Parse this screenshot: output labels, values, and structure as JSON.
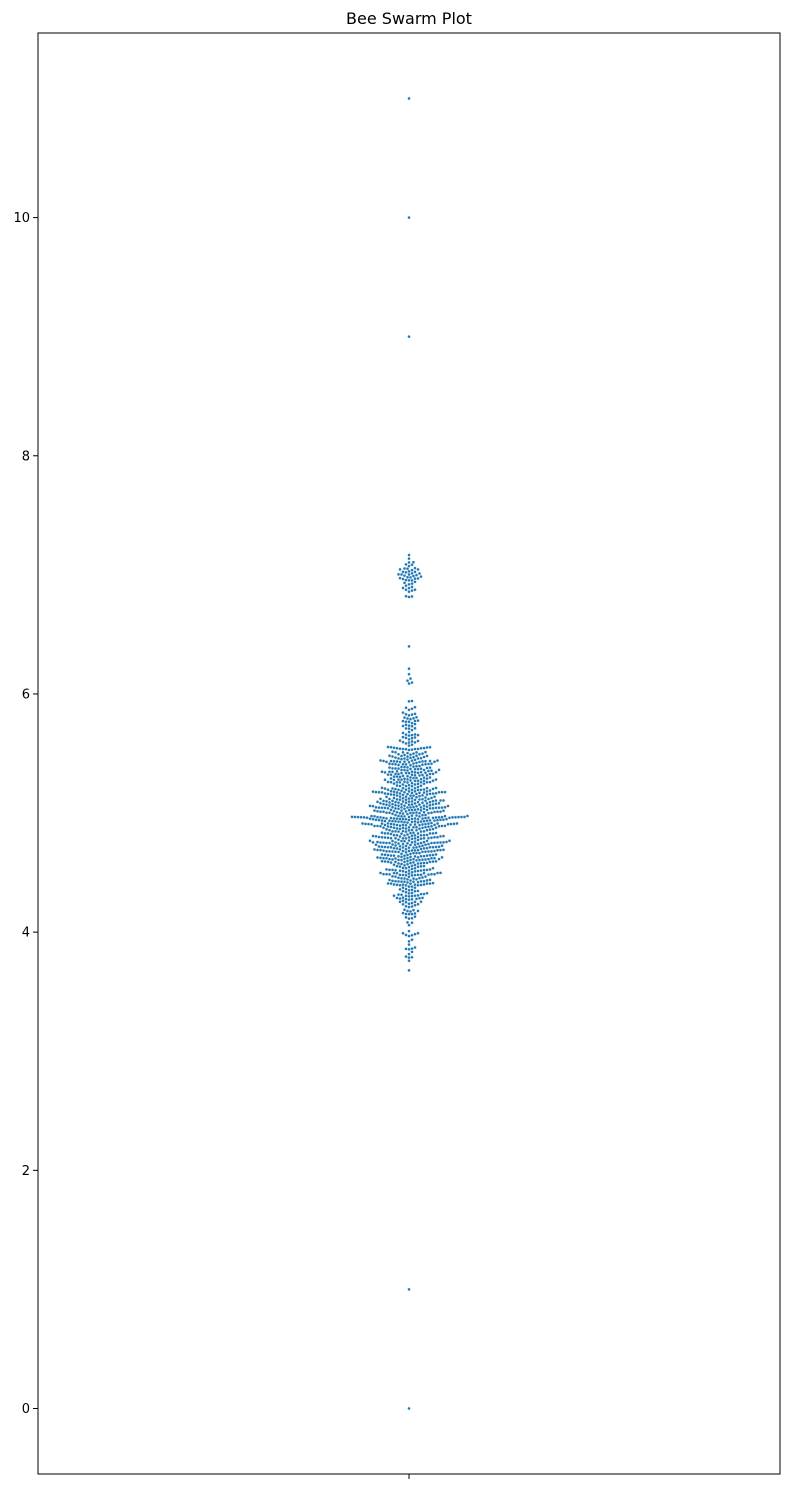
{
  "chart_data": {
    "type": "scatter",
    "subtype": "beeswarm",
    "title": "Bee Swarm Plot",
    "xlabel": "",
    "ylabel": "",
    "ylim": [
      -0.55,
      11.55
    ],
    "y_ticks": [
      0,
      2,
      4,
      6,
      8,
      10
    ],
    "y_tick_labels": [
      "0",
      "2",
      "4",
      "6",
      "8",
      "10"
    ],
    "grid": false,
    "legend": "none",
    "marker_color": "#1f77b4",
    "marker_edge_color": "#ffffff",
    "outliers": [
      0,
      1,
      9,
      10,
      11
    ],
    "main_cluster": {
      "count": 900,
      "mean": 4.95,
      "std": 0.45,
      "min": 3.5,
      "max": 6.5
    },
    "upper_cluster": {
      "count": 50,
      "mean": 7.0,
      "std": 0.1,
      "min": 6.75,
      "max": 7.2
    }
  }
}
